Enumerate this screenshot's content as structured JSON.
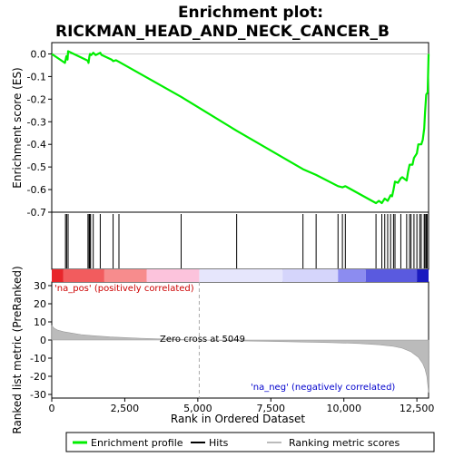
{
  "chart_data": {
    "type": "line",
    "title_line1": "Enrichment plot:",
    "title_line2": "RICKMAN_HEAD_AND_NECK_CANCER_B",
    "es_panel": {
      "ylabel": "Enrichment score (ES)",
      "ylim": [
        -0.7,
        0.05
      ],
      "yticks": [
        0.0,
        -0.1,
        -0.2,
        -0.3,
        -0.4,
        -0.5,
        -0.6,
        -0.7
      ],
      "ytick_labels": [
        "0.0",
        "-0.1",
        "-0.2",
        "-0.3",
        "-0.4",
        "-0.5",
        "-0.6",
        "-0.7"
      ],
      "line_color": "#00ee00",
      "series": [
        {
          "values": [
            [
              0,
              0.0
            ],
            [
              450,
              -0.04
            ],
            [
              500,
              -0.01
            ],
            [
              540,
              -0.025
            ],
            [
              560,
              0.012
            ],
            [
              1230,
              -0.03
            ],
            [
              1260,
              -0.04
            ],
            [
              1290,
              -0.01
            ],
            [
              1310,
              0.0
            ],
            [
              1350,
              -0.005
            ],
            [
              1420,
              0.005
            ],
            [
              1500,
              -0.005
            ],
            [
              1660,
              0.005
            ],
            [
              1700,
              -0.004
            ],
            [
              2050,
              -0.025
            ],
            [
              2100,
              -0.032
            ],
            [
              2200,
              -0.028
            ],
            [
              2300,
              -0.035
            ],
            [
              4430,
              -0.19
            ],
            [
              6330,
              -0.34
            ],
            [
              8600,
              -0.51
            ],
            [
              9050,
              -0.535
            ],
            [
              9800,
              -0.585
            ],
            [
              9950,
              -0.59
            ],
            [
              10050,
              -0.585
            ],
            [
              11100,
              -0.66
            ],
            [
              11200,
              -0.65
            ],
            [
              11300,
              -0.66
            ],
            [
              11400,
              -0.64
            ],
            [
              11500,
              -0.65
            ],
            [
              11600,
              -0.625
            ],
            [
              11650,
              -0.63
            ],
            [
              11700,
              -0.6
            ],
            [
              11750,
              -0.565
            ],
            [
              11850,
              -0.57
            ],
            [
              11950,
              -0.55
            ],
            [
              12000,
              -0.545
            ],
            [
              12150,
              -0.56
            ],
            [
              12200,
              -0.52
            ],
            [
              12250,
              -0.49
            ],
            [
              12350,
              -0.49
            ],
            [
              12400,
              -0.46
            ],
            [
              12450,
              -0.45
            ],
            [
              12500,
              -0.44
            ],
            [
              12550,
              -0.4
            ],
            [
              12650,
              -0.4
            ],
            [
              12700,
              -0.38
            ],
            [
              12750,
              -0.33
            ],
            [
              12780,
              -0.26
            ],
            [
              12820,
              -0.18
            ],
            [
              12870,
              -0.17
            ],
            [
              12900,
              0.0
            ]
          ]
        }
      ]
    },
    "hits_panel": {
      "hit_positions": [
        470,
        510,
        560,
        1240,
        1280,
        1300,
        1330,
        1420,
        1660,
        2100,
        2300,
        4430,
        6330,
        8600,
        9050,
        9800,
        9950,
        10050,
        11100,
        11300,
        11400,
        11500,
        11600,
        11700,
        11750,
        11950,
        12150,
        12250,
        12300,
        12400,
        12500,
        12600,
        12650,
        12750,
        12780,
        12820,
        12850,
        12900
      ]
    },
    "ranked_panel": {
      "ylabel": "Ranked list metric (PreRanked)",
      "xlabel": "Rank in Ordered Dataset",
      "ylim": [
        -32,
        32
      ],
      "yticks": [
        30,
        20,
        10,
        0,
        -10,
        -20,
        -30
      ],
      "ytick_labels": [
        "30",
        "20",
        "10",
        "0",
        "-10",
        "-20",
        "-30"
      ],
      "xlim": [
        0,
        12900
      ],
      "xticks": [
        0,
        2500,
        5000,
        7500,
        10000,
        12500
      ],
      "xtick_labels": [
        "0",
        "2,500",
        "5,000",
        "7,500",
        "10,000",
        "12,500"
      ],
      "fill_color": "#bbbbbb",
      "metric_curve": [
        [
          0,
          8
        ],
        [
          80,
          6.5
        ],
        [
          200,
          5.5
        ],
        [
          400,
          4.6
        ],
        [
          700,
          3.8
        ],
        [
          1000,
          3.0
        ],
        [
          1400,
          2.4
        ],
        [
          2000,
          1.7
        ],
        [
          3000,
          1.0
        ],
        [
          4000,
          0.5
        ],
        [
          5049,
          0.0
        ],
        [
          6500,
          -0.5
        ],
        [
          8000,
          -0.9
        ],
        [
          9500,
          -1.4
        ],
        [
          10500,
          -1.9
        ],
        [
          11200,
          -2.6
        ],
        [
          11700,
          -3.5
        ],
        [
          12000,
          -4.5
        ],
        [
          12300,
          -6.5
        ],
        [
          12550,
          -9.5
        ],
        [
          12700,
          -13
        ],
        [
          12780,
          -16
        ],
        [
          12840,
          -20
        ],
        [
          12880,
          -26
        ],
        [
          12900,
          -29
        ]
      ],
      "zero_cross_label": "Zero cross at 5049",
      "zero_cross": 5049,
      "pos_label": "'na_pos' (positively correlated)",
      "neg_label": "'na_neg' (negatively correlated)",
      "pos_label_color": "#cc0000",
      "neg_label_color": "#0000cc"
    },
    "color_bar": [
      {
        "from": 0,
        "to": 400,
        "color": "#e8262b"
      },
      {
        "from": 400,
        "to": 1800,
        "color": "#f25c5e"
      },
      {
        "from": 1800,
        "to": 3250,
        "color": "#f78c8d"
      },
      {
        "from": 3250,
        "to": 5049,
        "color": "#fcc3dc"
      },
      {
        "from": 5049,
        "to": 7900,
        "color": "#e6e6fc"
      },
      {
        "from": 7900,
        "to": 9800,
        "color": "#d5d5fb"
      },
      {
        "from": 9800,
        "to": 10750,
        "color": "#8c8cf0"
      },
      {
        "from": 10750,
        "to": 12500,
        "color": "#5a5adf"
      },
      {
        "from": 12500,
        "to": 12900,
        "color": "#1a1ac0"
      }
    ],
    "legend": {
      "items": [
        {
          "label": "Enrichment profile",
          "color": "#00ee00",
          "kind": "line"
        },
        {
          "label": "Hits",
          "color": "#000000",
          "kind": "line"
        },
        {
          "label": "Ranking metric scores",
          "color": "#bbbbbb",
          "kind": "line"
        }
      ]
    }
  }
}
